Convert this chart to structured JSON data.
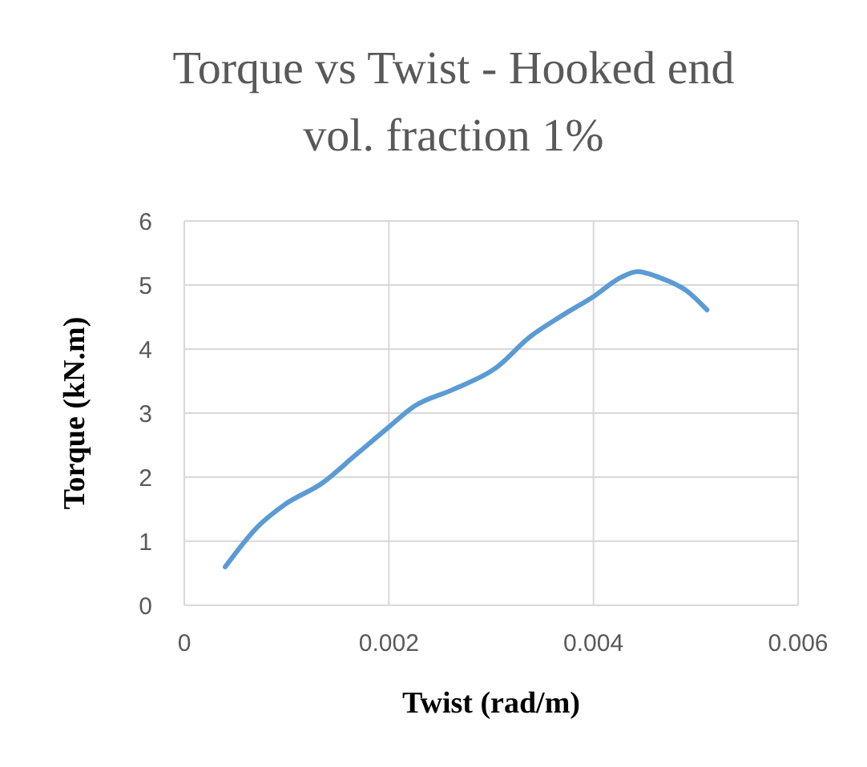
{
  "chart_data": {
    "type": "line",
    "title": "Torque vs Twist - Hooked end vol. fraction 1%",
    "xlabel": "Twist (rad/m)",
    "ylabel": "Torque (kN.m)",
    "x": [
      0.0004,
      0.00072,
      0.00098,
      0.00135,
      0.00167,
      0.00199,
      0.00225,
      0.00263,
      0.00305,
      0.00337,
      0.00369,
      0.004,
      0.00427,
      0.00443,
      0.00464,
      0.00491,
      0.00511
    ],
    "series": [
      {
        "color": "#5b9bd5",
        "values": [
          0.6,
          1.23,
          1.57,
          1.91,
          2.34,
          2.77,
          3.11,
          3.37,
          3.71,
          4.18,
          4.52,
          4.82,
          5.12,
          5.21,
          5.12,
          4.91,
          4.61
        ]
      }
    ],
    "xlim": [
      0,
      0.006
    ],
    "xticks": [
      0,
      0.002,
      0.004,
      0.006
    ],
    "ylim": [
      0,
      6
    ],
    "yticks": [
      0,
      1,
      2,
      3,
      4,
      5,
      6
    ],
    "grid": true,
    "legend": false,
    "marker": "none",
    "line_style": "solid"
  }
}
